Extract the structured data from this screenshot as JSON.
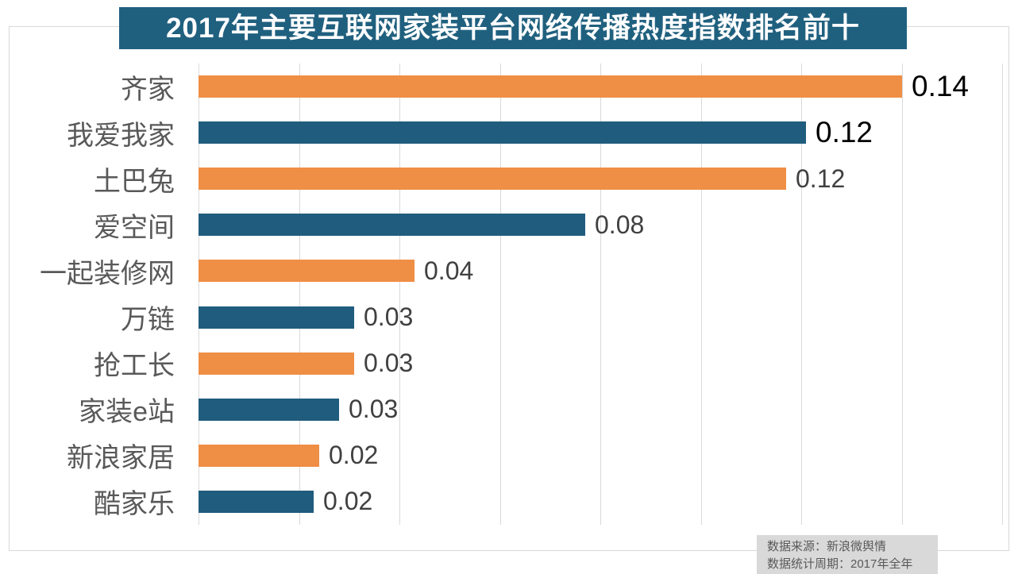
{
  "title": {
    "text": "2017年主要互联网家装平台网络传播热度指数排名前十"
  },
  "chart_data": {
    "type": "bar",
    "orientation": "horizontal",
    "title": "2017年主要互联网家装平台网络传播热度指数排名前十",
    "categories": [
      "齐家",
      "我爱我家",
      "土巴兔",
      "爱空间",
      "一起装修网",
      "万链",
      "抢工长",
      "家装e站",
      "新浪家居",
      "酷家乐"
    ],
    "values": [
      0.14,
      0.12,
      0.12,
      0.08,
      0.04,
      0.03,
      0.03,
      0.03,
      0.02,
      0.02
    ],
    "value_labels": [
      "0.14",
      "0.12",
      "0.12",
      "0.08",
      "0.04",
      "0.03",
      "0.03",
      "0.03",
      "0.02",
      "0.02"
    ],
    "values_precise": [
      0.14,
      0.121,
      0.117,
      0.077,
      0.043,
      0.031,
      0.031,
      0.028,
      0.024,
      0.023
    ],
    "bar_colors": [
      "#EF8E45",
      "#1F5C7D",
      "#EF8E45",
      "#1F5C7D",
      "#EF8E45",
      "#1F5C7D",
      "#EF8E45",
      "#1F5C7D",
      "#EF8E45",
      "#1F5C7D"
    ],
    "value_label_colors": [
      "#000000",
      "#000000",
      "#404040",
      "#404040",
      "#404040",
      "#404040",
      "#404040",
      "#404040",
      "#404040",
      "#404040"
    ],
    "xlabel": "",
    "ylabel": "",
    "xlim": [
      0,
      0.16
    ],
    "gridline_interval": 0.02,
    "grid": true,
    "legend": "none"
  },
  "source_note": {
    "line1": "数据来源：新浪微舆情",
    "line2": "数据统计周期：2017年全年"
  },
  "colors": {
    "orange": "#EF8E45",
    "blue": "#1F5C7D",
    "title_bg": "#20607F",
    "title_text": "#FFFFFF",
    "grid": "#D9D9D9",
    "frame_border": "#D9D9D9",
    "category_label": "#595959",
    "value_label_emphasis": "#000000",
    "value_label": "#404040",
    "source_bg": "#D9D9D9",
    "source_text": "#595959"
  }
}
